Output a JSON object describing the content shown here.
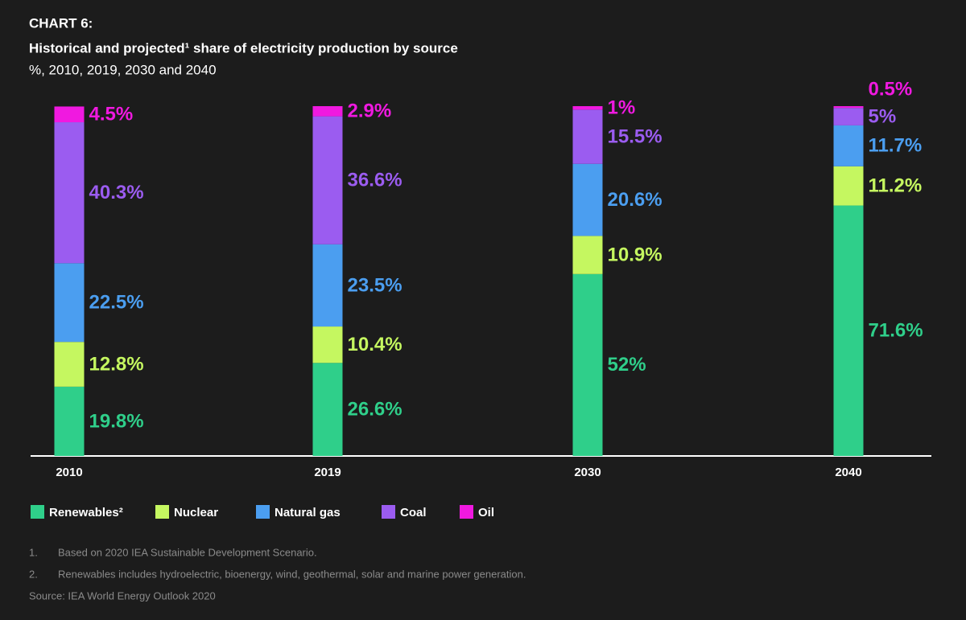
{
  "chart_data": {
    "type": "stacked-bar",
    "label": "CHART 6:",
    "title": "Historical and projected¹ share of electricity production by source",
    "subtitle": "%, 2010, 2019, 2030 and 2040",
    "categories": [
      "2010",
      "2019",
      "2030",
      "2040"
    ],
    "ylim": [
      0,
      100
    ],
    "series": [
      {
        "name": "Renewables²",
        "color": "#2fcf8a",
        "values": [
          19.8,
          26.6,
          52,
          71.6
        ],
        "value_labels": [
          "19.8%",
          "26.6%",
          "52%",
          "71.6%"
        ]
      },
      {
        "name": "Nuclear",
        "color": "#c5f760",
        "values": [
          12.8,
          10.4,
          10.9,
          11.2
        ],
        "value_labels": [
          "12.8%",
          "10.4%",
          "10.9%",
          "11.2%"
        ]
      },
      {
        "name": "Natural gas",
        "color": "#4b9ef0",
        "values": [
          22.5,
          23.5,
          20.6,
          11.7
        ],
        "value_labels": [
          "22.5%",
          "23.5%",
          "20.6%",
          "11.7%"
        ]
      },
      {
        "name": "Coal",
        "color": "#9b5cf0",
        "values": [
          40.3,
          36.6,
          15.5,
          5
        ],
        "value_labels": [
          "40.3%",
          "36.6%",
          "15.5%",
          "5%"
        ]
      },
      {
        "name": "Oil",
        "color": "#f019e0",
        "values": [
          4.5,
          2.9,
          1,
          0.5
        ],
        "value_labels": [
          "4.5%",
          "2.9%",
          "1%",
          "0.5%"
        ]
      }
    ],
    "footnotes": [
      {
        "number": "1.",
        "text": "Based on 2020 IEA Sustainable Development Scenario."
      },
      {
        "number": "2.",
        "text": "Renewables includes hydroelectric, bioenergy, wind, geothermal, solar and marine power generation."
      }
    ],
    "source": "Source: IEA World Energy Outlook 2020"
  }
}
